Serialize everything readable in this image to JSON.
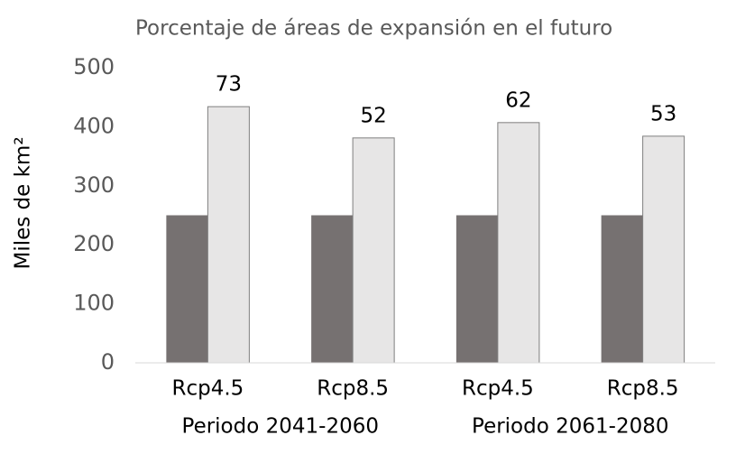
{
  "chart_data": {
    "type": "bar",
    "title": "Porcentaje de áreas de expansión en el futuro",
    "y_label": "Miles de km²",
    "categories": [
      "Rcp4.5",
      "Rcp8.5",
      "Rcp4.5",
      "Rcp8.5"
    ],
    "groups": [
      "Periodo 2041-2060",
      "Periodo 2061-2080"
    ],
    "series": [
      {
        "color": "#767171",
        "values": [
          250,
          250,
          250,
          250
        ]
      },
      {
        "color": "#e7e6e6",
        "values": [
          434,
          381,
          407,
          384
        ],
        "annotations": [
          73,
          52,
          62,
          53
        ]
      }
    ],
    "ylim": [
      0,
      500
    ],
    "yticks": [
      0,
      100,
      200,
      300,
      400,
      500
    ],
    "grid": false
  }
}
